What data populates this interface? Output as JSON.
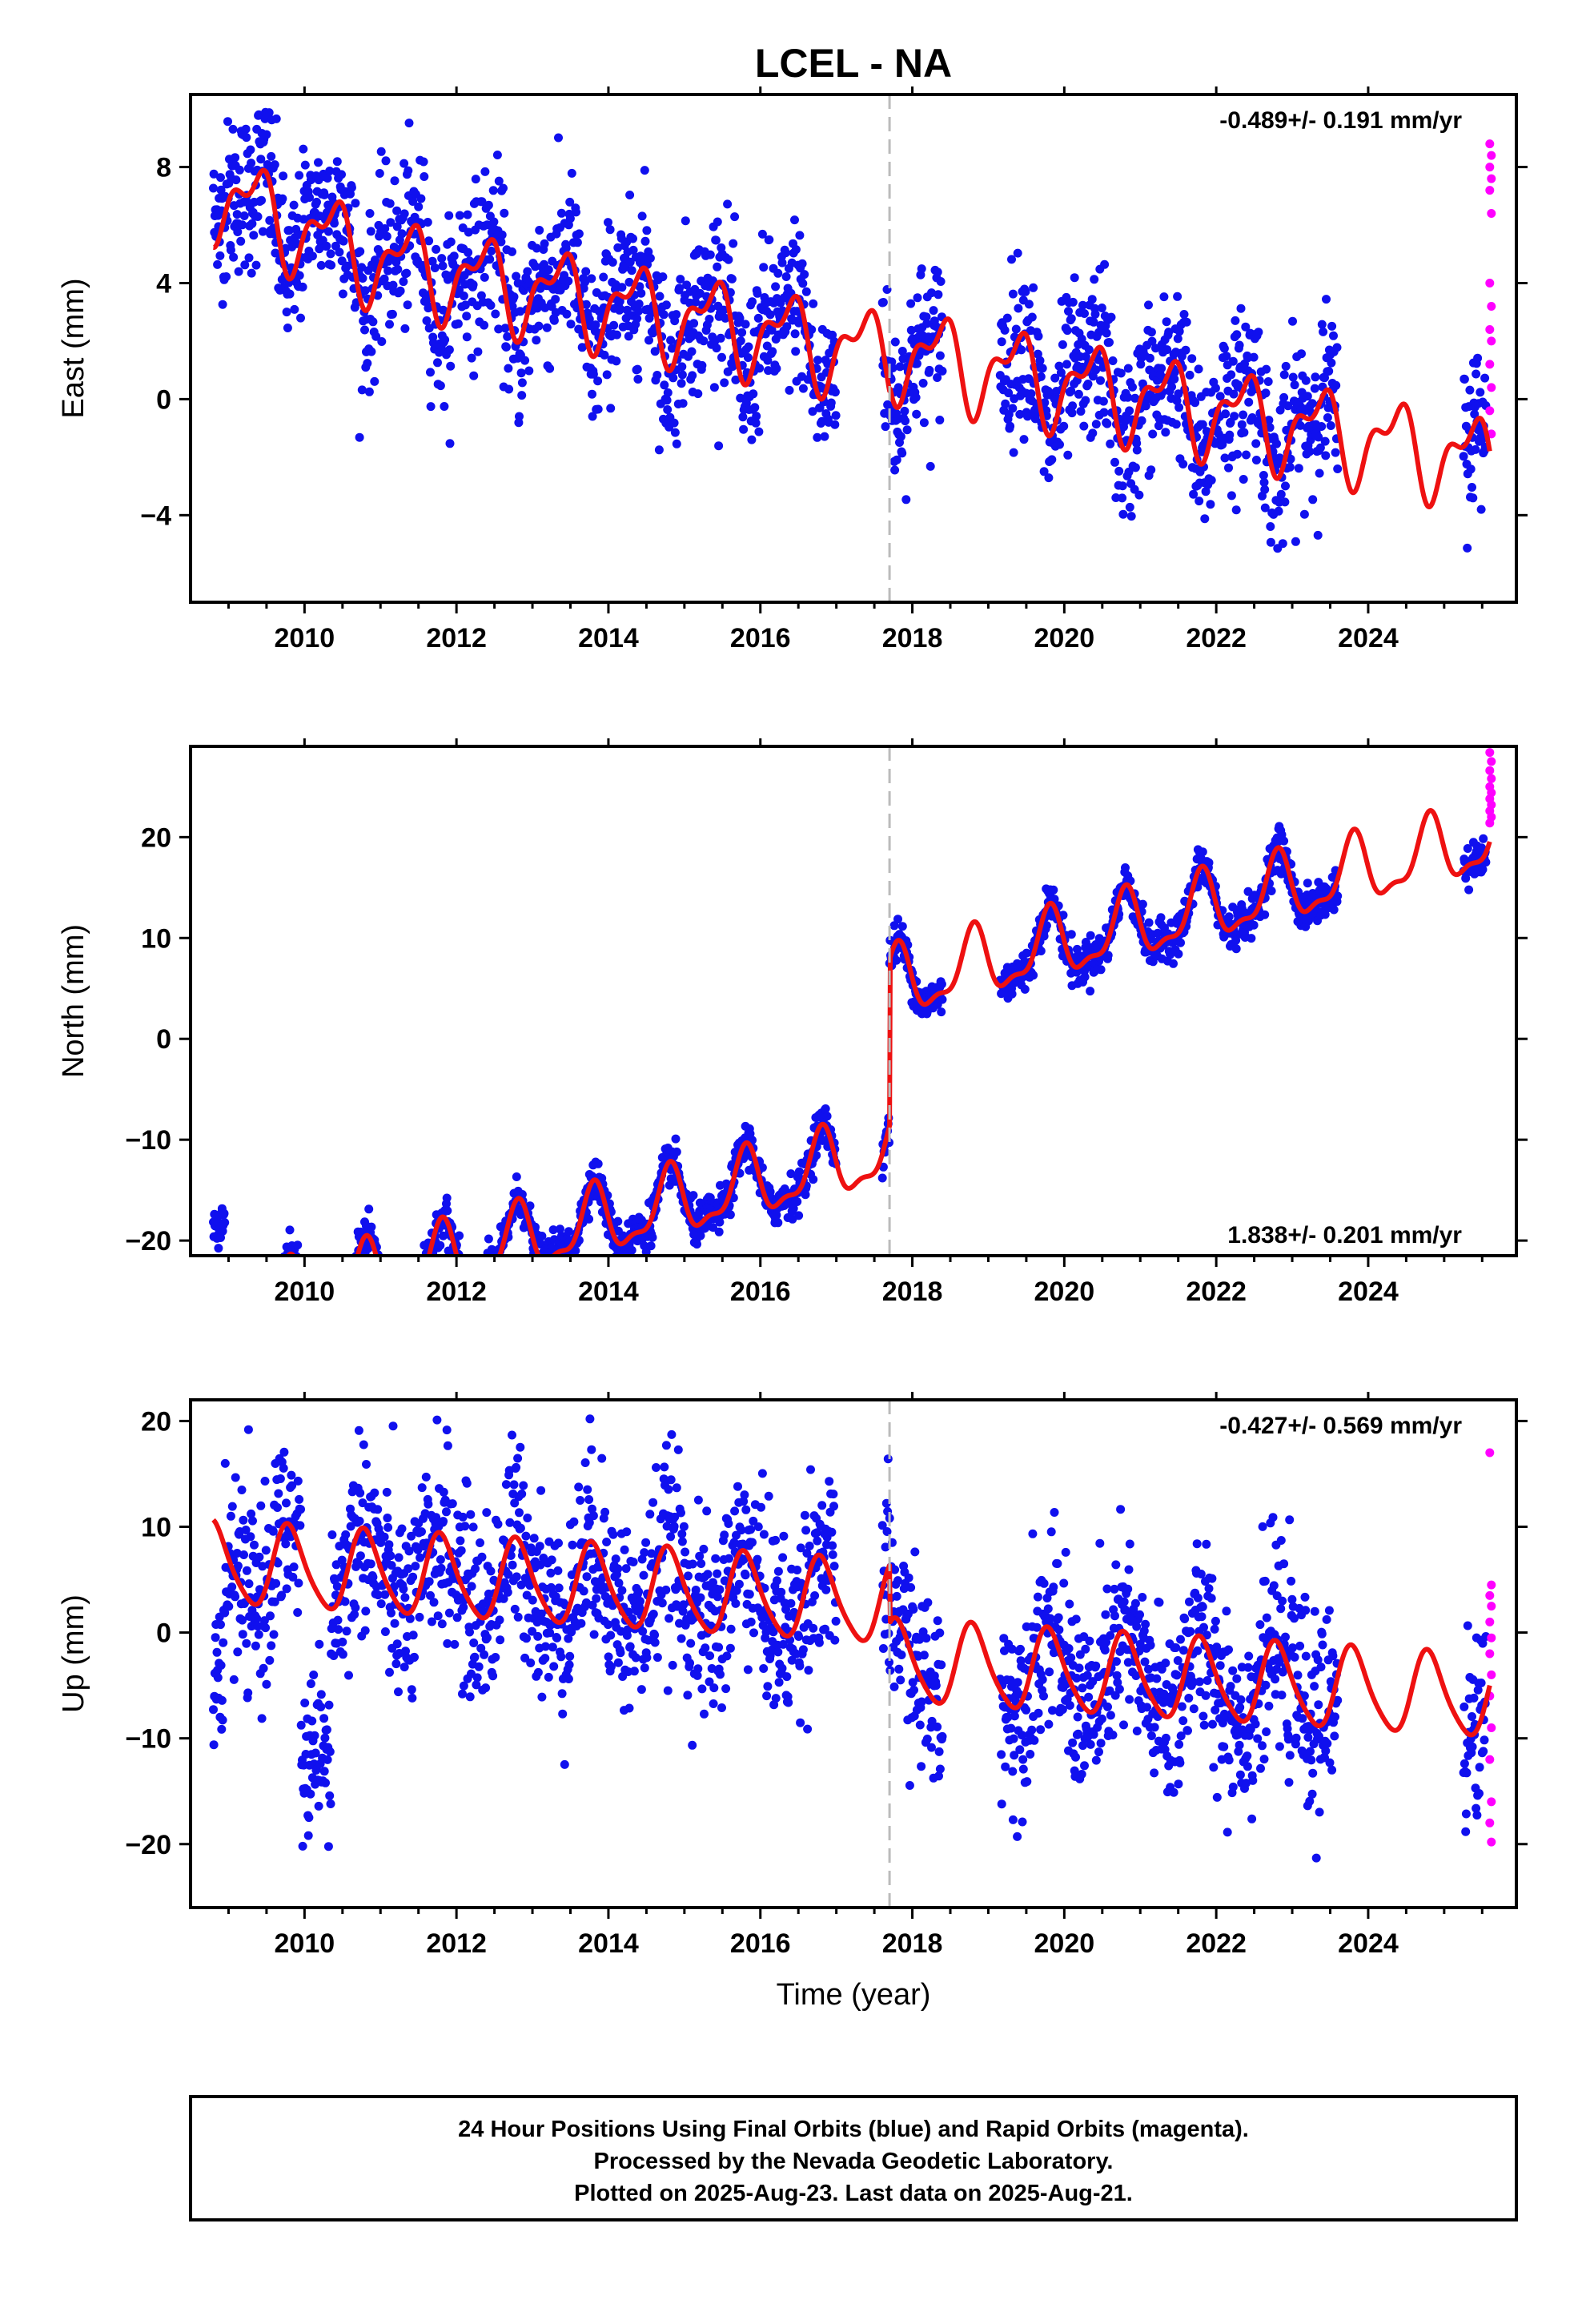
{
  "chart_data": {
    "type": "scatter",
    "title": "LCEL - NA",
    "xlabel": "Time (year)",
    "xlim": [
      2008.5,
      2025.95
    ],
    "x_ticks": [
      2010,
      2012,
      2014,
      2016,
      2018,
      2020,
      2022,
      2024
    ],
    "x_tick_labels": [
      "2010",
      "2012",
      "2014",
      "2016",
      "2018",
      "2020",
      "2022",
      "2024"
    ],
    "equipment_change_year": 2017.7,
    "panels": [
      {
        "id": "east",
        "ylabel": "East (mm)",
        "ylim": [
          -7,
          10.5
        ],
        "y_ticks": [
          8,
          4,
          0,
          -4
        ],
        "y_tick_labels": [
          "8",
          "4",
          "0",
          "−4"
        ],
        "rate_text": "-0.489+/- 0.191 mm/yr",
        "rate_position": "top-right",
        "model": {
          "rate": -0.489,
          "annual_amp": 1.3,
          "annual_phase": 0.1,
          "semi_amp": 0.7,
          "semi_phase": 0.4,
          "offset_before": 1.8,
          "offset_after": 2.0,
          "step_at_break": 4.0,
          "early_bias": 0.6
        },
        "noise": 1.4,
        "outlier_blocks": [
          {
            "from": 2008.8,
            "to": 2008.95,
            "value": 6.2
          },
          {
            "from": 2010.0,
            "to": 2010.3,
            "value": 6.5
          }
        ],
        "rapid_values": [
          8.8,
          8.4,
          8.0,
          7.6,
          7.2,
          6.4,
          4.0,
          3.2,
          2.4,
          2.0,
          1.2,
          0.4,
          -0.4,
          -1.2
        ]
      },
      {
        "id": "north",
        "ylabel": "North (mm)",
        "ylim": [
          -21.5,
          29
        ],
        "y_ticks": [
          20,
          10,
          0,
          -10,
          -20
        ],
        "y_tick_labels": [
          "20",
          "10",
          "0",
          "−10",
          "−20"
        ],
        "rate_text": "1.838+/- 0.201 mm/yr",
        "rate_position": "bottom-right",
        "model": {
          "rate": 1.838,
          "annual_amp": 3.2,
          "annual_phase": 0.55,
          "semi_amp": 1.2,
          "semi_phase": 0.2,
          "offset_before": -12.5,
          "offset_after": 3.9,
          "step_at_break": 0.0,
          "early_bias": 0
        },
        "noise": 1.0,
        "outlier_blocks": [
          {
            "from": 2008.8,
            "to": 2008.95,
            "value": -18.5
          }
        ],
        "rapid_values": [
          28.4,
          27.5,
          26.6,
          25.8,
          25.0,
          24.4,
          23.8,
          23.2,
          22.6,
          22.0,
          21.4
        ]
      },
      {
        "id": "up",
        "ylabel": "Up (mm)",
        "ylim": [
          -26,
          22
        ],
        "y_ticks": [
          20,
          10,
          0,
          -10,
          -20
        ],
        "y_tick_labels": [
          "20",
          "10",
          "0",
          "−10",
          "−20"
        ],
        "rate_text": "-0.427+/- 0.569 mm/yr",
        "rate_position": "top-right",
        "model": {
          "rate": -0.427,
          "annual_amp": 3.8,
          "annual_phase": 0.55,
          "semi_amp": 0.6,
          "semi_phase": 0.1,
          "offset_before": 3.0,
          "offset_after": -2.5,
          "step_at_break": 0.0,
          "early_bias": 0
        },
        "noise": 4.5,
        "outlier_blocks": [
          {
            "from": 2008.8,
            "to": 2008.95,
            "value": -4.0
          },
          {
            "from": 2009.95,
            "to": 2010.35,
            "value": -13.0
          }
        ],
        "rapid_values": [
          17.0,
          4.5,
          3.5,
          2.5,
          1.0,
          -0.5,
          -2.0,
          -4.0,
          -6.0,
          -9.0,
          -12.0,
          -16.0,
          -18.0,
          -19.8
        ]
      }
    ],
    "series": [
      {
        "name": "Final Orbits (blue)",
        "color": "#1010ee",
        "kind": "points"
      },
      {
        "name": "Rapid Orbits (magenta)",
        "color": "#ff00ff",
        "kind": "points"
      },
      {
        "name": "model",
        "color": "#ee1111",
        "kind": "line"
      }
    ],
    "data_gaps": [
      [
        2017.0,
        2017.6
      ],
      [
        2018.4,
        2019.15
      ],
      [
        2023.6,
        2025.25
      ]
    ],
    "first_obs": 2008.8,
    "last_obs": 2025.6,
    "rapid_start": 2025.55
  },
  "footer": {
    "line1": "24 Hour Positions Using Final Orbits (blue) and Rapid Orbits (magenta).",
    "line2": "Processed by the Nevada Geodetic Laboratory.",
    "line3": "Plotted on 2025-Aug-23. Last data on 2025-Aug-21."
  }
}
